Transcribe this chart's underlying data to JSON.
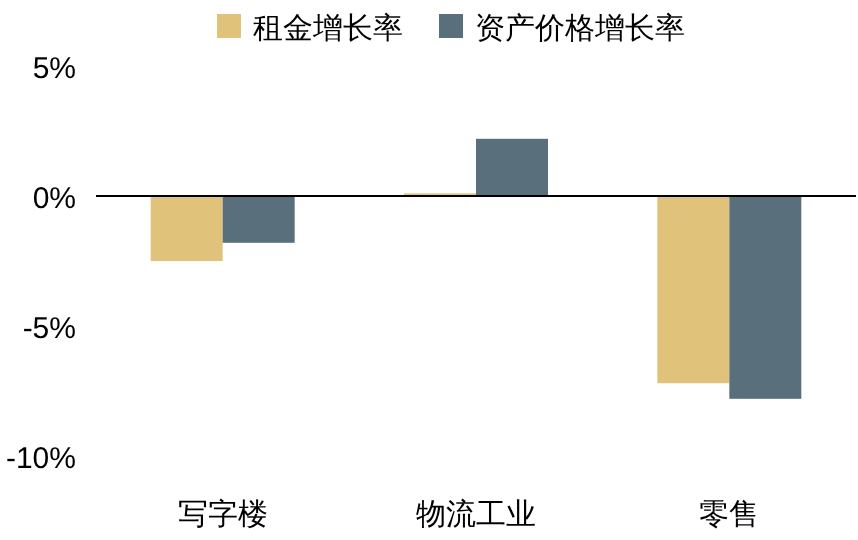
{
  "chart_data": {
    "type": "bar",
    "categories": [
      "写字楼",
      "物流工业",
      "零售"
    ],
    "series": [
      {
        "name": "租金增长率",
        "color": "#e0c27a",
        "values": [
          -2.5,
          0.1,
          -7.2
        ]
      },
      {
        "name": "资产价格增长率",
        "color": "#5a6f7c",
        "values": [
          -1.8,
          2.2,
          -7.8
        ]
      }
    ],
    "ylim": [
      -10,
      5
    ],
    "yticks": [
      {
        "value": 5,
        "label": "5%"
      },
      {
        "value": 0,
        "label": "0%"
      },
      {
        "value": -5,
        "label": "-5%"
      },
      {
        "value": -10,
        "label": "-10%"
      }
    ],
    "legend": "top"
  }
}
